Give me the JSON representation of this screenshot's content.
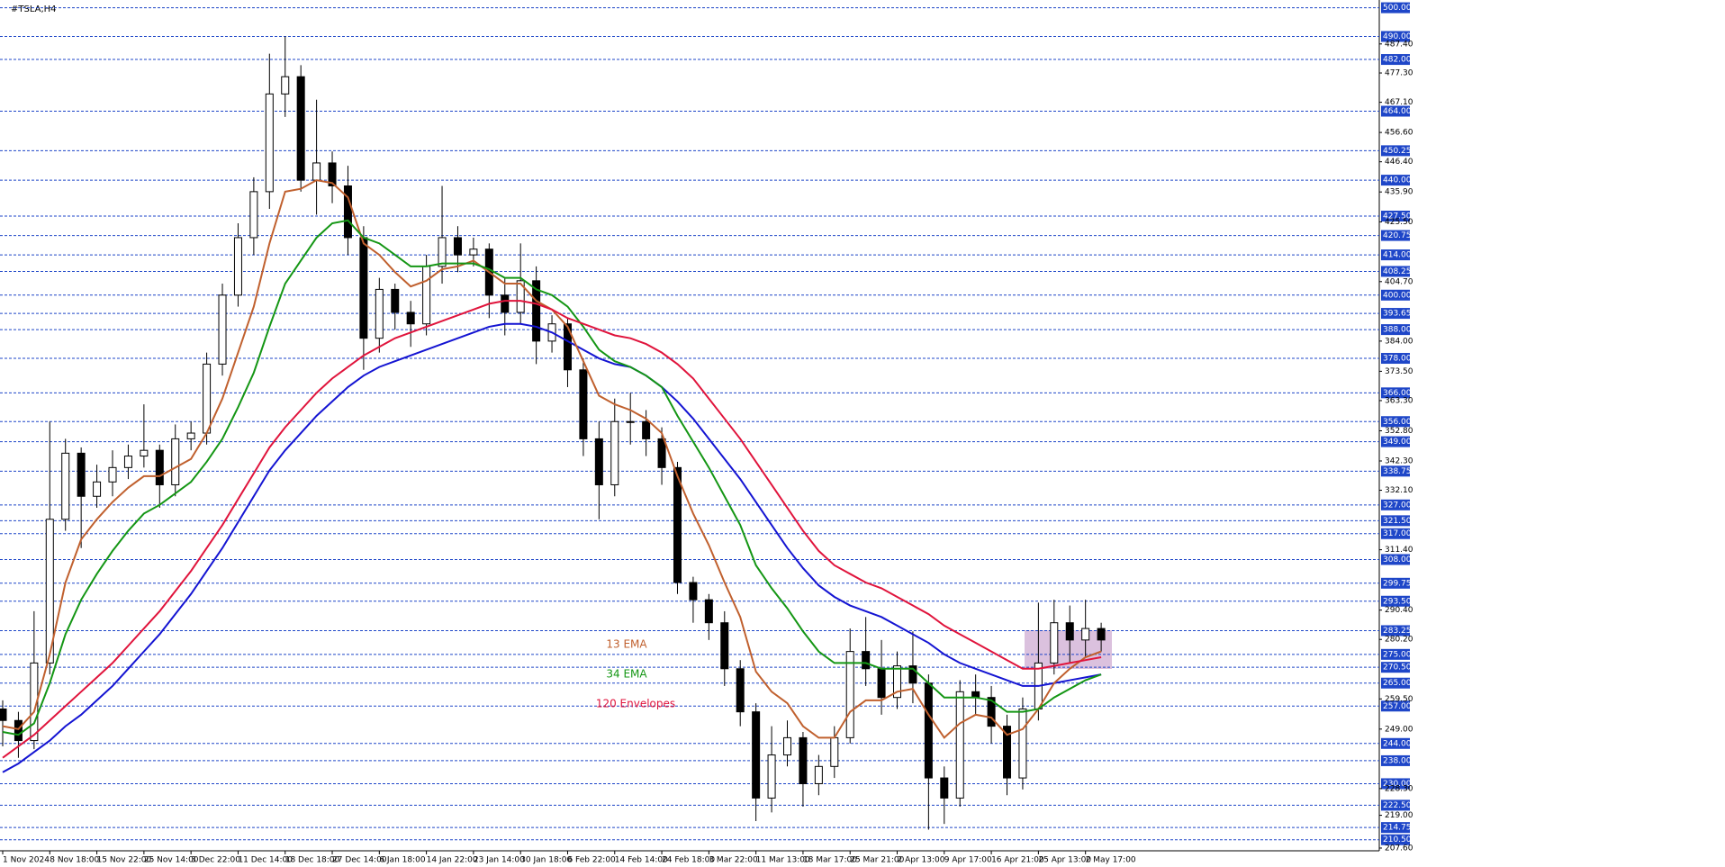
{
  "chart_data": {
    "type": "candlestick",
    "title": "#TSLA,H4",
    "categories": [
      "1 Nov 2024",
      null,
      null,
      "8 Nov 18:00",
      null,
      null,
      "15 Nov 22:00",
      null,
      null,
      "25 Nov 14:00",
      null,
      null,
      "3 Dec 22:00",
      null,
      null,
      "11 Dec 14:00",
      null,
      null,
      "18 Dec 18:00",
      null,
      null,
      "27 Dec 14:00",
      null,
      null,
      "6 Jan 18:00",
      null,
      null,
      "14 Jan 22:00",
      null,
      null,
      "23 Jan 14:00",
      null,
      null,
      "30 Jan 18:00",
      null,
      null,
      "6 Feb 22:00",
      null,
      null,
      "14 Feb 14:00",
      null,
      null,
      "24 Feb 18:00",
      null,
      null,
      "3 Mar 22:00",
      null,
      null,
      "11 Mar 13:00",
      null,
      null,
      "18 Mar 17:00",
      null,
      null,
      "25 Mar 21:00",
      null,
      null,
      "2 Apr 13:00",
      null,
      null,
      "9 Apr 17:00",
      null,
      null,
      "16 Apr 21:00",
      null,
      null,
      "25 Apr 13:00",
      null,
      null,
      "2 May 17:00",
      null
    ],
    "open": [
      256,
      252,
      245,
      272,
      322,
      345,
      330,
      335,
      340,
      344,
      346,
      334,
      350,
      352,
      376,
      400,
      420,
      436,
      470,
      476,
      440,
      446,
      438,
      420,
      385,
      402,
      394,
      390,
      410,
      420,
      414,
      416,
      400,
      394,
      405,
      384,
      390,
      374,
      350,
      334,
      356,
      356,
      350,
      340,
      300,
      294,
      286,
      270,
      255,
      225,
      240,
      246,
      230,
      236,
      246,
      276,
      270,
      260,
      271,
      265,
      232,
      225,
      262,
      260,
      250,
      232,
      256,
      272,
      286,
      280,
      284
    ],
    "high": [
      259,
      255,
      290,
      356,
      350,
      347,
      341,
      346,
      348,
      362,
      348,
      355,
      356,
      380,
      404,
      425,
      441,
      484,
      490,
      480,
      468,
      450,
      445,
      424,
      406,
      404,
      398,
      414,
      438,
      424,
      420,
      418,
      406,
      418,
      410,
      393,
      392,
      378,
      356,
      364,
      366,
      360,
      354,
      342,
      302,
      296,
      290,
      273,
      258,
      250,
      252,
      248,
      240,
      250,
      284,
      288,
      280,
      276,
      283,
      268,
      236,
      266,
      268,
      264,
      254,
      260,
      293,
      294,
      292,
      294,
      286
    ],
    "low": [
      243,
      239,
      242,
      268,
      318,
      312,
      326,
      330,
      336,
      340,
      326,
      330,
      346,
      348,
      372,
      396,
      414,
      430,
      462,
      436,
      428,
      432,
      414,
      374,
      380,
      388,
      382,
      386,
      404,
      408,
      410,
      392,
      386,
      390,
      376,
      380,
      368,
      344,
      322,
      330,
      348,
      344,
      334,
      296,
      286,
      280,
      264,
      250,
      217,
      220,
      236,
      222,
      226,
      232,
      244,
      264,
      254,
      256,
      258,
      214,
      216,
      222,
      254,
      244,
      226,
      228,
      252,
      268,
      272,
      274,
      276
    ],
    "close": [
      252,
      245,
      272,
      322,
      345,
      330,
      335,
      340,
      344,
      346,
      334,
      350,
      352,
      376,
      400,
      420,
      436,
      470,
      476,
      440,
      446,
      438,
      420,
      385,
      402,
      394,
      390,
      410,
      420,
      414,
      416,
      400,
      394,
      405,
      384,
      390,
      374,
      350,
      334,
      356,
      356,
      350,
      340,
      300,
      294,
      286,
      270,
      255,
      225,
      240,
      246,
      230,
      236,
      246,
      276,
      270,
      260,
      271,
      265,
      232,
      225,
      262,
      260,
      250,
      232,
      256,
      272,
      286,
      280,
      284,
      280
    ],
    "candle_color": "#000000",
    "series": [
      {
        "name": "13 EMA",
        "color": "#c0602e",
        "values": [
          250,
          249,
          255,
          275,
          300,
          315,
          322,
          328,
          333,
          337,
          337,
          340,
          343,
          352,
          364,
          380,
          396,
          418,
          436,
          437,
          440,
          439,
          434,
          418,
          414,
          408,
          403,
          405,
          409,
          410,
          412,
          408,
          404,
          404,
          398,
          395,
          389,
          377,
          365,
          362,
          360,
          357,
          352,
          337,
          324,
          313,
          300,
          288,
          269,
          262,
          258,
          250,
          246,
          246,
          255,
          259,
          259,
          262,
          263,
          254,
          246,
          251,
          254,
          253,
          247,
          249,
          256,
          265,
          270,
          274,
          276
        ]
      },
      {
        "name": "34 EMA",
        "color": "#149614",
        "values": [
          248,
          247,
          251,
          265,
          282,
          294,
          303,
          311,
          318,
          324,
          327,
          331,
          335,
          342,
          350,
          361,
          373,
          389,
          404,
          412,
          420,
          425,
          426,
          420,
          418,
          414,
          410,
          410,
          411,
          411,
          411,
          409,
          406,
          406,
          402,
          400,
          396,
          389,
          381,
          377,
          375,
          372,
          368,
          358,
          349,
          340,
          330,
          320,
          306,
          298,
          291,
          283,
          276,
          272,
          272,
          272,
          270,
          270,
          270,
          265,
          260,
          260,
          260,
          259,
          255,
          255,
          256,
          260,
          263,
          266,
          268
        ]
      },
      {
        "name": "120 Envelopes",
        "color": "#e0143c",
        "values": [
          239,
          243,
          247,
          252,
          257,
          262,
          267,
          272,
          278,
          284,
          290,
          297,
          304,
          312,
          320,
          329,
          338,
          347,
          354,
          360,
          366,
          371,
          375,
          379,
          382,
          385,
          387,
          389,
          391,
          393,
          395,
          397,
          398,
          398,
          397,
          395,
          392,
          390,
          388,
          386,
          385,
          383,
          380,
          376,
          371,
          364,
          357,
          350,
          342,
          334,
          326,
          318,
          311,
          306,
          303,
          300,
          298,
          295,
          292,
          289,
          285,
          282,
          279,
          276,
          273,
          270,
          270,
          271,
          272,
          273,
          274
        ]
      }
    ],
    "envelope_lower": {
      "color": "#1414d2",
      "values": [
        234,
        237,
        241,
        245,
        250,
        254,
        259,
        264,
        270,
        276,
        282,
        289,
        296,
        304,
        312,
        321,
        330,
        339,
        346,
        352,
        358,
        363,
        368,
        372,
        375,
        377,
        379,
        381,
        383,
        385,
        387,
        389,
        390,
        390,
        389,
        387,
        384,
        381,
        378,
        376,
        375,
        372,
        368,
        363,
        357,
        350,
        343,
        336,
        328,
        320,
        312,
        305,
        299,
        295,
        292,
        290,
        288,
        285,
        282,
        279,
        275,
        272,
        270,
        268,
        266,
        264,
        264,
        265,
        266,
        267,
        268
      ]
    },
    "ylim": [
      206.65,
      502.69
    ],
    "levels": [
      {
        "value": 500,
        "label": "500.00"
      },
      {
        "value": 490,
        "label": "490.00"
      },
      {
        "value": 482,
        "label": "482.00"
      },
      {
        "value": 464,
        "label": "464.00"
      },
      {
        "value": 450.25,
        "label": "450.25"
      },
      {
        "value": 440,
        "label": "440.00"
      },
      {
        "value": 427.5,
        "label": "427.50"
      },
      {
        "value": 420.75,
        "label": "420.75"
      },
      {
        "value": 414,
        "label": "414.00"
      },
      {
        "value": 408.25,
        "label": "408.25"
      },
      {
        "value": 400,
        "label": "400.00"
      },
      {
        "value": 393.65,
        "label": "393.65"
      },
      {
        "value": 388,
        "label": "388.00"
      },
      {
        "value": 378,
        "label": "378.00"
      },
      {
        "value": 366,
        "label": "366.00"
      },
      {
        "value": 356,
        "label": "356.00"
      },
      {
        "value": 349,
        "label": "349.00"
      },
      {
        "value": 338.75,
        "label": "338.75"
      },
      {
        "value": 327,
        "label": "327.00"
      },
      {
        "value": 321.5,
        "label": "321.50"
      },
      {
        "value": 317,
        "label": "317.00"
      },
      {
        "value": 308,
        "label": "308.00"
      },
      {
        "value": 299.75,
        "label": "299.75"
      },
      {
        "value": 293.5,
        "label": "293.50"
      },
      {
        "value": 283.25,
        "label": "283.25"
      },
      {
        "value": 275,
        "label": "275.00"
      },
      {
        "value": 270.5,
        "label": "270.50"
      },
      {
        "value": 265,
        "label": "265.00"
      },
      {
        "value": 257,
        "label": "257.00"
      },
      {
        "value": 244,
        "label": "244.00"
      },
      {
        "value": 238,
        "label": "238.00"
      },
      {
        "value": 230,
        "label": "230.00"
      },
      {
        "value": 222.5,
        "label": "222.50"
      },
      {
        "value": 214.75,
        "label": "214.75"
      },
      {
        "value": 210.5,
        "label": "210.50"
      }
    ],
    "level_color": "#1e46c8",
    "yticks": [
      {
        "value": 487.4,
        "label": "487.40"
      },
      {
        "value": 477.3,
        "label": "477.30"
      },
      {
        "value": 467.1,
        "label": "467.10"
      },
      {
        "value": 456.6,
        "label": "456.60"
      },
      {
        "value": 446.4,
        "label": "446.40"
      },
      {
        "value": 435.9,
        "label": "435.90"
      },
      {
        "value": 425.5,
        "label": "425.50"
      },
      {
        "value": 404.7,
        "label": "404.70"
      },
      {
        "value": 384,
        "label": "384.00"
      },
      {
        "value": 373.5,
        "label": "373.50"
      },
      {
        "value": 363.3,
        "label": "363.30"
      },
      {
        "value": 352.8,
        "label": "352.80"
      },
      {
        "value": 342.3,
        "label": "342.30"
      },
      {
        "value": 332.1,
        "label": "332.10"
      },
      {
        "value": 311.4,
        "label": "311.40"
      },
      {
        "value": 290.4,
        "label": "290.40"
      },
      {
        "value": 280.2,
        "label": "280.20"
      },
      {
        "value": 259.5,
        "label": "259.50"
      },
      {
        "value": 249,
        "label": "249.00"
      },
      {
        "value": 228.3,
        "label": "228.30"
      },
      {
        "value": 219,
        "label": "219.00"
      },
      {
        "value": 207.6,
        "label": "207.60"
      }
    ]
  }
}
